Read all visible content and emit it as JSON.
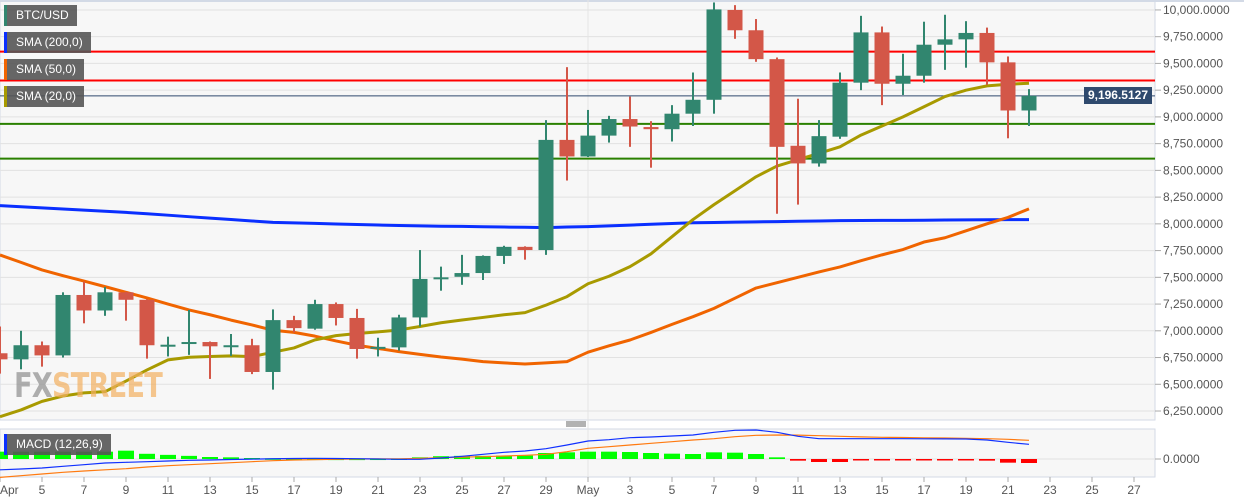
{
  "colors": {
    "up": "#31866f",
    "down": "#d35748",
    "sma200": "#0a2fff",
    "sma50": "#f06400",
    "sma20": "#a89a00",
    "resistance": "#ff0000",
    "support": "#2a8000",
    "price_line": "#2f4a6e",
    "macd": "#1030ff",
    "signal": "#ff7a10",
    "hist_pos": "#00ff00",
    "hist_neg": "#ff0000",
    "bg": "#f7f7f7",
    "grid": "#e2e2e2"
  },
  "legend": [
    {
      "label": "BTC/USD",
      "color": "#31866f"
    },
    {
      "label": "SMA (200,0)",
      "color": "#0a2fff"
    },
    {
      "label": "SMA (50,0)",
      "color": "#f06400"
    },
    {
      "label": "SMA (20,0)",
      "color": "#a89a00"
    }
  ],
  "macd_legend": {
    "label": "MACD (12,26,9)",
    "color": "#0a2fff"
  },
  "watermark": {
    "part1": "FX",
    "part2": "STREET"
  },
  "last_price_tag": "9,196.5127",
  "chart_data": [
    {
      "type": "candlestick",
      "title": "",
      "ylim": [
        6166,
        10093
      ],
      "yticks": [
        10000,
        9750,
        9500,
        9250,
        9000,
        8750,
        8500,
        8250,
        8000,
        7750,
        7500,
        7250,
        7000,
        6750,
        6500,
        6250
      ],
      "ytick_labels": [
        "10,000.0000",
        "9,750.0000",
        "9,500.0000",
        "9,250.0000",
        "9,000.0000",
        "8,750.0000",
        "8,500.0000",
        "8,250.0000",
        "8,000.0000",
        "7,750.0000",
        "7,500.0000",
        "7,250.0000",
        "7,000.0000",
        "6,750.0000",
        "6,500.0000",
        "6,250.0000"
      ],
      "xtick_labels": [
        {
          "label": "Apr",
          "day": 0
        },
        {
          "label": "5",
          "day": 2
        },
        {
          "label": "7",
          "day": 4
        },
        {
          "label": "9",
          "day": 6
        },
        {
          "label": "11",
          "day": 8
        },
        {
          "label": "13",
          "day": 10
        },
        {
          "label": "15",
          "day": 12
        },
        {
          "label": "17",
          "day": 14
        },
        {
          "label": "19",
          "day": 16
        },
        {
          "label": "21",
          "day": 18
        },
        {
          "label": "23",
          "day": 20
        },
        {
          "label": "25",
          "day": 22
        },
        {
          "label": "27",
          "day": 24
        },
        {
          "label": "29",
          "day": 26
        },
        {
          "label": "May",
          "day": 28
        },
        {
          "label": "3",
          "day": 30
        },
        {
          "label": "5",
          "day": 32
        },
        {
          "label": "7",
          "day": 34
        },
        {
          "label": "9",
          "day": 36
        },
        {
          "label": "11",
          "day": 38
        },
        {
          "label": "13",
          "day": 40
        },
        {
          "label": "15",
          "day": 42
        },
        {
          "label": "17",
          "day": 44
        },
        {
          "label": "19",
          "day": 46
        },
        {
          "label": "21",
          "day": 48
        },
        {
          "label": "23",
          "day": 50
        },
        {
          "label": "25",
          "day": 52
        },
        {
          "label": "27",
          "day": 54
        }
      ],
      "dates": [
        "Apr 3",
        "Apr 4",
        "Apr 5",
        "Apr 6",
        "Apr 7",
        "Apr 8",
        "Apr 9",
        "Apr 10",
        "Apr 11",
        "Apr 12",
        "Apr 13",
        "Apr 14",
        "Apr 15",
        "Apr 16",
        "Apr 17",
        "Apr 18",
        "Apr 19",
        "Apr 20",
        "Apr 21",
        "Apr 22",
        "Apr 23",
        "Apr 24",
        "Apr 25",
        "Apr 26",
        "Apr 27",
        "Apr 28",
        "Apr 29",
        "Apr 30",
        "May 1",
        "May 2",
        "May 3",
        "May 4",
        "May 5",
        "May 6",
        "May 7",
        "May 8",
        "May 9",
        "May 10",
        "May 11",
        "May 12",
        "May 13",
        "May 14",
        "May 15",
        "May 16",
        "May 17",
        "May 18",
        "May 19",
        "May 20",
        "May 21",
        "May 22"
      ],
      "ohlc": [
        [
          6790,
          7040,
          6600,
          6733
        ],
        [
          6733,
          7000,
          6640,
          6865
        ],
        [
          6865,
          6900,
          6665,
          6770
        ],
        [
          6770,
          7360,
          6750,
          7335
        ],
        [
          7335,
          7460,
          7070,
          7190
        ],
        [
          7190,
          7410,
          7140,
          7360
        ],
        [
          7360,
          7365,
          7095,
          7290
        ],
        [
          7290,
          7295,
          6740,
          6865
        ],
        [
          6860,
          6945,
          6760,
          6870
        ],
        [
          6885,
          7195,
          6775,
          6895
        ],
        [
          6895,
          6900,
          6550,
          6855
        ],
        [
          6855,
          6970,
          6765,
          6865
        ],
        [
          6865,
          6925,
          6595,
          6615
        ],
        [
          6615,
          7200,
          6450,
          7100
        ],
        [
          7100,
          7140,
          6985,
          7025
        ],
        [
          7020,
          7290,
          7010,
          7250
        ],
        [
          7250,
          7265,
          7050,
          7120
        ],
        [
          7120,
          7205,
          6740,
          6830
        ],
        [
          6835,
          6935,
          6760,
          6850
        ],
        [
          6845,
          7150,
          6815,
          7125
        ],
        [
          7125,
          7755,
          7040,
          7485
        ],
        [
          7490,
          7600,
          7375,
          7500
        ],
        [
          7505,
          7710,
          7430,
          7540
        ],
        [
          7540,
          7705,
          7475,
          7700
        ],
        [
          7700,
          7795,
          7625,
          7785
        ],
        [
          7785,
          7790,
          7665,
          7755
        ],
        [
          7755,
          8970,
          7710,
          8785
        ],
        [
          8785,
          9465,
          8405,
          8630
        ],
        [
          8630,
          9065,
          8625,
          8825
        ],
        [
          8825,
          9010,
          8760,
          8980
        ],
        [
          8980,
          9190,
          8720,
          8910
        ],
        [
          8905,
          8960,
          8525,
          8885
        ],
        [
          8885,
          9110,
          8770,
          9030
        ],
        [
          9030,
          9415,
          8915,
          9160
        ],
        [
          9160,
          10070,
          9030,
          10005
        ],
        [
          10000,
          10045,
          9730,
          9810
        ],
        [
          9810,
          9915,
          9515,
          9540
        ],
        [
          9540,
          9555,
          8095,
          8720
        ],
        [
          8730,
          9170,
          8180,
          8565
        ],
        [
          8565,
          8970,
          8535,
          8820
        ],
        [
          8815,
          9415,
          8795,
          9320
        ],
        [
          9320,
          9945,
          9250,
          9790
        ],
        [
          9790,
          9845,
          9110,
          9310
        ],
        [
          9310,
          9590,
          9205,
          9385
        ],
        [
          9385,
          9890,
          9320,
          9675
        ],
        [
          9675,
          9955,
          9440,
          9725
        ],
        [
          9725,
          9895,
          9460,
          9785
        ],
        [
          9785,
          9835,
          9300,
          9510
        ],
        [
          9510,
          9565,
          8800,
          9060
        ],
        [
          9060,
          9260,
          8915,
          9196.5127
        ]
      ],
      "series": [
        {
          "name": "SMA (200,0)",
          "values": [
            8170,
            8160,
            8149,
            8139,
            8128,
            8118,
            8107,
            8094,
            8081,
            8067,
            8054,
            8041,
            8027,
            8014,
            8009,
            8004,
            7999,
            7994,
            7989,
            7984,
            7981,
            7978,
            7976,
            7973,
            7970,
            7968,
            7965,
            7970,
            7974,
            7981,
            7988,
            7996,
            8003,
            8010,
            8013,
            8016,
            8019,
            8021,
            8024,
            8027,
            8030,
            8031,
            8032,
            8033,
            8034,
            8036,
            8037,
            8038,
            8039,
            8040
          ]
        },
        {
          "name": "SMA (50,0)",
          "values": [
            7709,
            7640,
            7569,
            7515,
            7465,
            7413,
            7360,
            7307,
            7250,
            7195,
            7150,
            7100,
            7055,
            7005,
            6985,
            6950,
            6905,
            6865,
            6835,
            6805,
            6780,
            6755,
            6735,
            6712,
            6700,
            6690,
            6700,
            6712,
            6800,
            6860,
            6914,
            6985,
            7060,
            7132,
            7210,
            7305,
            7400,
            7450,
            7500,
            7550,
            7597,
            7655,
            7710,
            7760,
            7830,
            7870,
            7935,
            8000,
            8060,
            8140
          ]
        },
        {
          "name": "SMA (20,0)",
          "values": [
            6197,
            6260,
            6340,
            6390,
            6420,
            6431,
            6530,
            6634,
            6728,
            6753,
            6760,
            6765,
            6758,
            6800,
            6840,
            6915,
            6955,
            6975,
            6990,
            7008,
            7040,
            7075,
            7101,
            7125,
            7150,
            7170,
            7240,
            7320,
            7440,
            7510,
            7600,
            7720,
            7880,
            8040,
            8180,
            8310,
            8440,
            8540,
            8600,
            8660,
            8720,
            8830,
            8915,
            9000,
            9095,
            9190,
            9250,
            9290,
            9305,
            9315
          ]
        }
      ],
      "horizontal_lines": [
        {
          "kind": "resistance",
          "value": 9610
        },
        {
          "kind": "resistance",
          "value": 9340
        },
        {
          "kind": "support",
          "value": 8935
        },
        {
          "kind": "support",
          "value": 8610
        }
      ],
      "last_price": 9196.5127,
      "grid": true
    },
    {
      "type": "macd",
      "title": "MACD (12,26,9)",
      "ylim": [
        -270,
        450
      ],
      "yticks": [
        0
      ],
      "ytick_labels": [
        "0.0000"
      ],
      "series": [
        {
          "name": "MACD",
          "values": [
            -162,
            -150,
            -135,
            -110,
            -85,
            -60,
            -50,
            -40,
            -30,
            -20,
            -15,
            -8,
            -2,
            4,
            8,
            10,
            8,
            5,
            0,
            -5,
            -5,
            15,
            40,
            70,
            100,
            120,
            155,
            210,
            270,
            290,
            320,
            330,
            345,
            360,
            400,
            430,
            435,
            400,
            340,
            305,
            305,
            305,
            305,
            305,
            303,
            302,
            300,
            285,
            250,
            220
          ]
        },
        {
          "name": "Signal",
          "values": [
            -276,
            -250,
            -225,
            -200,
            -180,
            -162,
            -145,
            -120,
            -100,
            -85,
            -70,
            -55,
            -40,
            -25,
            -15,
            -10,
            -5,
            0,
            2,
            3,
            10,
            20,
            28,
            35,
            45,
            55,
            70,
            110,
            160,
            185,
            210,
            235,
            260,
            285,
            305,
            335,
            355,
            360,
            358,
            350,
            340,
            332,
            325,
            322,
            318,
            315,
            310,
            305,
            295,
            280
          ]
        },
        {
          "name": "Histogram",
          "values": [
            110,
            110,
            110,
            110,
            110,
            110,
            125,
            78,
            62,
            47,
            30,
            25,
            15,
            10,
            8,
            7,
            6,
            6,
            7,
            8,
            25,
            42,
            47,
            47,
            51,
            51,
            90,
            100,
            110,
            110,
            105,
            90,
            80,
            75,
            100,
            95,
            75,
            25,
            -25,
            -45,
            -45,
            -10,
            -15,
            -22,
            -20,
            -10,
            -10,
            -25,
            -55,
            -60
          ]
        }
      ]
    }
  ]
}
